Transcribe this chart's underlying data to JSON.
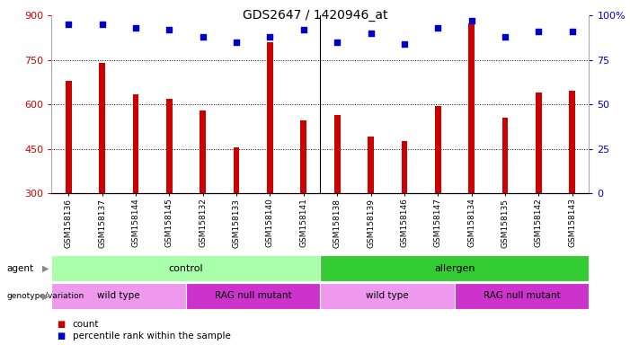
{
  "title": "GDS2647 / 1420946_at",
  "samples": [
    "GSM158136",
    "GSM158137",
    "GSM158144",
    "GSM158145",
    "GSM158132",
    "GSM158133",
    "GSM158140",
    "GSM158141",
    "GSM158138",
    "GSM158139",
    "GSM158146",
    "GSM158147",
    "GSM158134",
    "GSM158135",
    "GSM158142",
    "GSM158143"
  ],
  "counts": [
    680,
    740,
    635,
    620,
    580,
    455,
    810,
    545,
    565,
    490,
    475,
    595,
    875,
    555,
    640,
    645
  ],
  "percentile_ranks": [
    95,
    95,
    93,
    92,
    88,
    85,
    88,
    92,
    85,
    90,
    84,
    93,
    97,
    88,
    91,
    91
  ],
  "ymin": 300,
  "ymax": 900,
  "yticks": [
    300,
    450,
    600,
    750,
    900
  ],
  "y2ticks": [
    0,
    25,
    50,
    75,
    100
  ],
  "bar_color": "#cc0000",
  "dot_color": "#0000cc",
  "dot_size": 15,
  "bar_width": 0.18,
  "agent_groups": [
    {
      "label": "control",
      "start": 0,
      "end": 8,
      "color": "#aaffaa"
    },
    {
      "label": "allergen",
      "start": 8,
      "end": 16,
      "color": "#33cc33"
    }
  ],
  "genotype_groups": [
    {
      "label": "wild type",
      "start": 0,
      "end": 4,
      "color": "#ee99ee"
    },
    {
      "label": "RAG null mutant",
      "start": 4,
      "end": 8,
      "color": "#cc33cc"
    },
    {
      "label": "wild type",
      "start": 8,
      "end": 12,
      "color": "#ee99ee"
    },
    {
      "label": "RAG null mutant",
      "start": 12,
      "end": 16,
      "color": "#cc33cc"
    }
  ],
  "legend_count_color": "#cc0000",
  "legend_pct_color": "#0000cc",
  "tick_label_color_left": "#cc0000",
  "tick_label_color_right": "#0000cc",
  "xticklabel_bg": "#dddddd",
  "separator_col": 8,
  "agent_color_light": "#aaffaa",
  "agent_color_dark": "#33cc33"
}
